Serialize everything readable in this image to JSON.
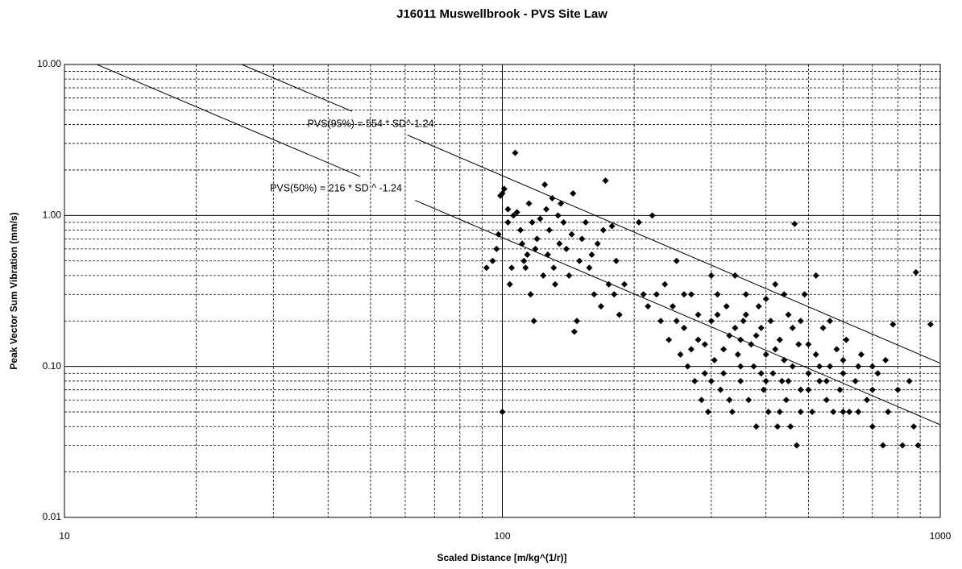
{
  "chart_data": {
    "type": "scatter",
    "title": "J16011 Muswellbrook  - PVS Site Law",
    "x_label": "Scaled Distance [m/kg^(1/r)]",
    "y_label": "Peak Vector Sum Vibration (mm/s)",
    "log_x": true,
    "log_y": true,
    "grid": true,
    "xlim": [
      10,
      1000
    ],
    "ylim": [
      0.01,
      10
    ],
    "xticks": [
      10,
      100,
      1000
    ],
    "yticks": [
      {
        "value": 0.01,
        "label": "0.01"
      },
      {
        "value": 0.1,
        "label": "0.10"
      },
      {
        "value": 1,
        "label": "1.00"
      },
      {
        "value": 10,
        "label": "10.00"
      }
    ],
    "xminorticks": [
      20,
      30,
      40,
      50,
      60,
      70,
      80,
      90,
      200,
      300,
      400,
      500,
      600,
      700,
      800,
      900
    ],
    "yminorticks": [
      0.02,
      0.03,
      0.04,
      0.05,
      0.06,
      0.07,
      0.08,
      0.09,
      0.2,
      0.3,
      0.4,
      0.5,
      0.6,
      0.7,
      0.8,
      0.9,
      2,
      3,
      4,
      5,
      6,
      7,
      8,
      9
    ],
    "color": "#000000",
    "x": [
      92,
      95,
      97,
      98,
      99,
      100,
      101,
      103,
      103,
      104,
      105,
      106,
      107,
      108,
      110,
      111,
      112,
      113,
      114,
      115,
      116,
      117,
      118,
      119,
      120,
      122,
      124,
      125,
      126,
      127,
      128,
      130,
      131,
      132,
      134,
      135,
      136,
      138,
      140,
      142,
      144,
      145,
      146,
      148,
      150,
      152,
      155,
      158,
      160,
      162,
      165,
      168,
      170,
      172,
      175,
      178,
      180,
      182,
      185,
      190,
      100,
      205,
      210,
      215,
      220,
      225,
      230,
      235,
      240,
      245,
      250,
      255,
      260,
      265,
      270,
      275,
      280,
      285,
      290,
      295,
      300,
      305,
      310,
      315,
      320,
      325,
      330,
      335,
      340,
      345,
      350,
      355,
      360,
      365,
      370,
      375,
      380,
      385,
      390,
      395,
      400,
      405,
      410,
      415,
      420,
      425,
      430,
      435,
      440,
      445,
      450,
      455,
      460,
      465,
      470,
      475,
      480,
      490,
      500,
      510,
      520,
      530,
      540,
      550,
      560,
      570,
      580,
      590,
      600,
      610,
      620,
      640,
      660,
      680,
      700,
      720,
      740,
      760,
      780,
      800,
      820,
      850,
      870,
      880,
      890,
      950,
      260,
      280,
      300,
      320,
      340,
      360,
      380,
      400,
      420,
      440,
      460,
      480,
      500,
      520,
      560,
      600,
      650,
      700,
      750,
      300,
      350,
      400,
      450,
      500,
      550,
      600,
      650,
      700,
      350,
      310,
      270,
      250,
      390,
      430,
      480,
      530,
      290,
      330
    ],
    "values": [
      0.45,
      0.5,
      0.6,
      0.75,
      1.35,
      1.4,
      1.5,
      1.1,
      0.9,
      0.35,
      0.45,
      1.0,
      2.6,
      1.05,
      0.8,
      0.65,
      0.5,
      0.45,
      0.55,
      1.2,
      0.3,
      0.9,
      0.2,
      0.6,
      0.7,
      0.95,
      0.4,
      1.6,
      1.1,
      0.55,
      0.8,
      1.3,
      0.45,
      0.35,
      1.0,
      0.65,
      1.2,
      0.9,
      0.6,
      0.4,
      0.75,
      1.4,
      0.17,
      0.2,
      0.5,
      0.7,
      0.9,
      0.45,
      0.55,
      0.3,
      0.65,
      0.25,
      0.8,
      1.7,
      0.35,
      0.85,
      0.3,
      0.5,
      0.22,
      0.35,
      0.05,
      0.9,
      0.3,
      0.25,
      1.0,
      0.3,
      0.2,
      0.35,
      0.15,
      0.25,
      0.5,
      0.12,
      0.18,
      0.1,
      0.3,
      0.08,
      0.22,
      0.06,
      0.14,
      0.05,
      0.2,
      0.11,
      0.3,
      0.07,
      0.09,
      0.25,
      0.16,
      0.05,
      0.4,
      0.12,
      0.08,
      0.2,
      0.3,
      0.06,
      0.14,
      0.1,
      0.04,
      0.25,
      0.18,
      0.07,
      0.12,
      0.05,
      0.2,
      0.09,
      0.35,
      0.04,
      0.15,
      0.08,
      0.11,
      0.06,
      0.22,
      0.04,
      0.1,
      0.88,
      0.03,
      0.14,
      0.07,
      0.3,
      0.09,
      0.05,
      0.12,
      0.08,
      0.18,
      0.06,
      0.1,
      0.05,
      0.13,
      0.07,
      0.09,
      0.15,
      0.05,
      0.08,
      0.12,
      0.06,
      0.04,
      0.09,
      0.03,
      0.05,
      0.19,
      0.07,
      0.03,
      0.08,
      0.04,
      0.42,
      0.03,
      0.19,
      0.3,
      0.15,
      0.4,
      0.13,
      0.18,
      0.22,
      0.16,
      0.28,
      0.13,
      0.3,
      0.18,
      0.2,
      0.14,
      0.4,
      0.2,
      0.11,
      0.1,
      0.1,
      0.11,
      0.08,
      0.1,
      0.08,
      0.08,
      0.07,
      0.08,
      0.05,
      0.05,
      0.07,
      0.15,
      0.22,
      0.13,
      0.2,
      0.09,
      0.05,
      0.05,
      0.1,
      0.09,
      0.06
    ],
    "fit_lines": [
      {
        "x": [
          25.4,
          45.4,
          null,
          60.7,
          1000
        ],
        "values": [
          10,
          4.89,
          null,
          3.41,
          0.105
        ],
        "color": "#000000"
      },
      {
        "x": [
          11.85,
          47.4,
          null,
          63.2,
          1000
        ],
        "values": [
          10,
          1.81,
          null,
          1.26,
          0.0411
        ],
        "color": "#000000"
      }
    ],
    "annotations": [
      "PVS(95%) = 554 * SD^-1.24",
      "PVS(50%) = 216 * SD ^ -1.24"
    ]
  }
}
